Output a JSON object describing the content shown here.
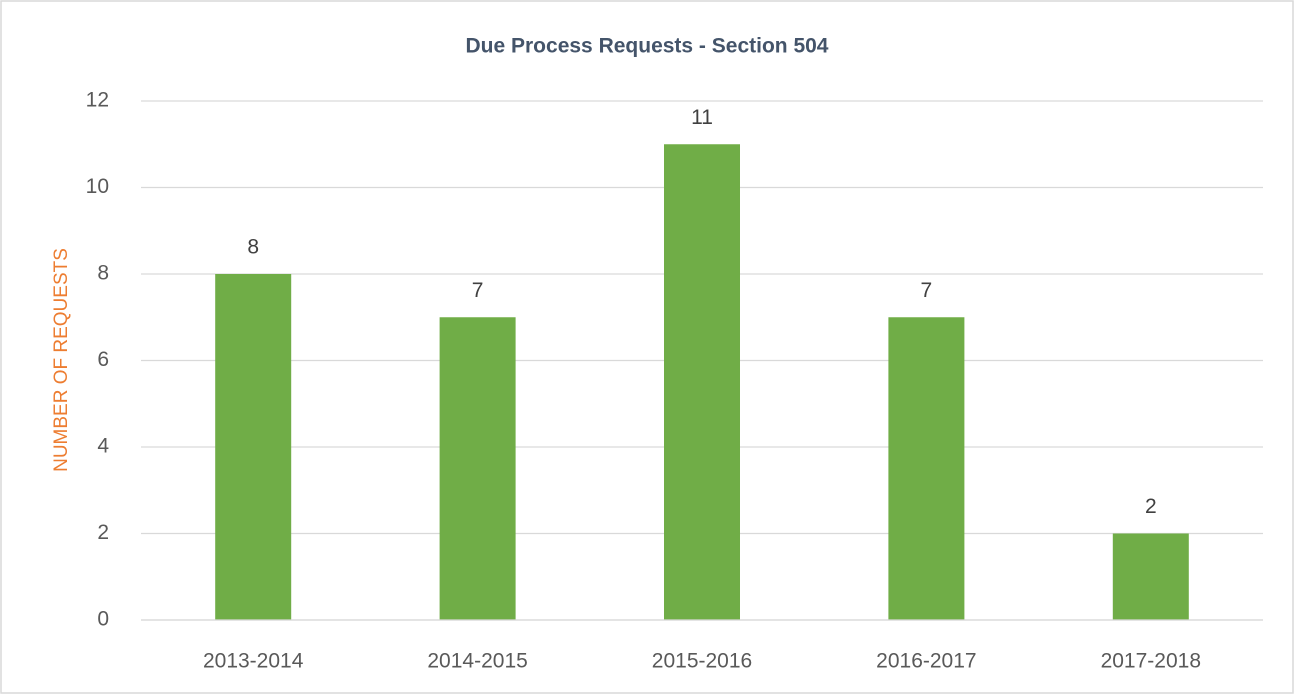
{
  "chart_data": {
    "type": "bar",
    "title": "Due Process Requests - Section 504",
    "y_label": "NUMBER OF REQUESTS",
    "categories": [
      "2013-2014",
      "2014-2015",
      "2015-2016",
      "2016-2017",
      "2017-2018"
    ],
    "values": [
      8,
      7,
      11,
      7,
      2
    ],
    "color": "#70ad47",
    "ylim": [
      0,
      12
    ],
    "yticks": [
      0,
      2,
      4,
      6,
      8,
      10,
      12
    ],
    "grid": true,
    "data_labels": true
  }
}
